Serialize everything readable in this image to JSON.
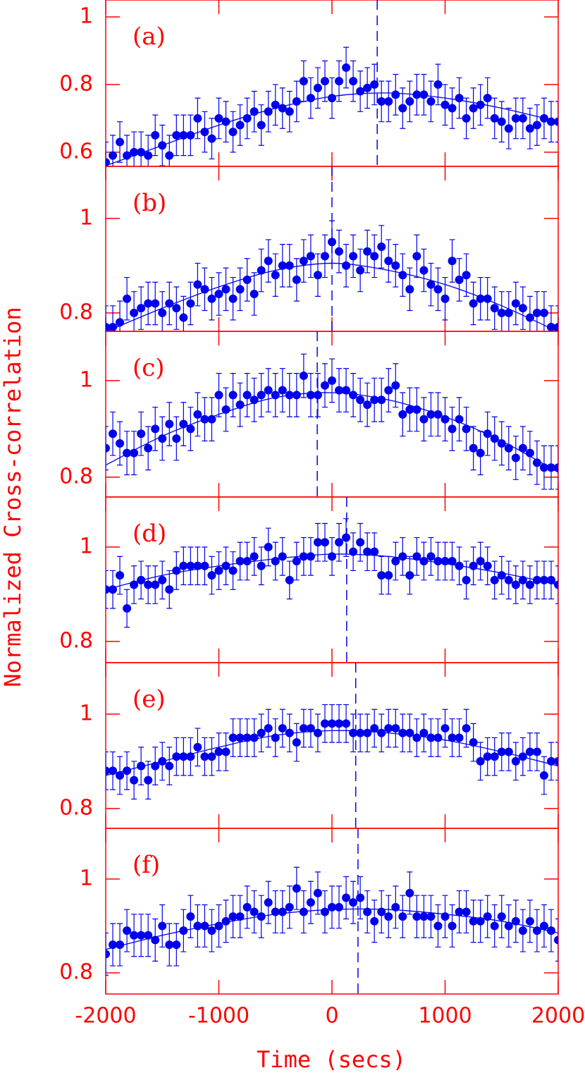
{
  "x_label": "Time (secs)",
  "y_label": "Normalized Cross-correlation",
  "axis_color": "#ff0000",
  "data_color": "#0000ee",
  "chart_data": [
    {
      "type": "scatter",
      "label": "(a)",
      "peak_x": 400,
      "error": 0.06,
      "x": [
        -2000,
        -1937.5,
        -1875,
        -1812.5,
        -1750,
        -1687.5,
        -1625,
        -1562.5,
        -1500,
        -1437.5,
        -1375,
        -1312.5,
        -1250,
        -1187.5,
        -1125,
        -1062.5,
        -1000,
        -937.5,
        -875,
        -812.5,
        -750,
        -687.5,
        -625,
        -562.5,
        -500,
        -437.5,
        -375,
        -312.5,
        -250,
        -187.5,
        -125,
        -62.5,
        0,
        62.5,
        125,
        187.5,
        250,
        312.5,
        375,
        437.5,
        500,
        562.5,
        625,
        687.5,
        750,
        812.5,
        875,
        937.5,
        1000,
        1062.5,
        1125,
        1187.5,
        1250,
        1312.5,
        1375,
        1437.5,
        1500,
        1562.5,
        1625,
        1687.5,
        1750,
        1812.5,
        1875,
        1937.5,
        2000
      ],
      "values": [
        0.57,
        0.59,
        0.63,
        0.59,
        0.6,
        0.6,
        0.59,
        0.65,
        0.62,
        0.59,
        0.65,
        0.65,
        0.65,
        0.7,
        0.66,
        0.64,
        0.7,
        0.69,
        0.66,
        0.68,
        0.7,
        0.72,
        0.68,
        0.72,
        0.74,
        0.73,
        0.72,
        0.75,
        0.81,
        0.76,
        0.79,
        0.81,
        0.76,
        0.81,
        0.85,
        0.81,
        0.78,
        0.79,
        0.8,
        0.75,
        0.75,
        0.77,
        0.73,
        0.75,
        0.77,
        0.77,
        0.75,
        0.8,
        0.74,
        0.73,
        0.76,
        0.7,
        0.73,
        0.74,
        0.76,
        0.7,
        0.69,
        0.67,
        0.7,
        0.7,
        0.67,
        0.68,
        0.7,
        0.69,
        0.69
      ],
      "fit": {
        "x": [
          -2000,
          -1500,
          -1000,
          -500,
          0,
          500,
          1000,
          1500,
          2000
        ],
        "values": [
          0.56,
          0.62,
          0.68,
          0.73,
          0.765,
          0.775,
          0.76,
          0.73,
          0.69
        ]
      },
      "xlim": [
        -2000,
        2000
      ],
      "xticks": [
        -2000,
        -1000,
        0,
        1000,
        2000
      ],
      "ylim": [
        0.558,
        1.05
      ],
      "yticks": [
        0.6,
        0.8,
        1
      ]
    },
    {
      "type": "scatter",
      "label": "(b)",
      "peak_x": 0,
      "error": 0.045,
      "x": [
        -2000,
        -1937.5,
        -1875,
        -1812.5,
        -1750,
        -1687.5,
        -1625,
        -1562.5,
        -1500,
        -1437.5,
        -1375,
        -1312.5,
        -1250,
        -1187.5,
        -1125,
        -1062.5,
        -1000,
        -937.5,
        -875,
        -812.5,
        -750,
        -687.5,
        -625,
        -562.5,
        -500,
        -437.5,
        -375,
        -312.5,
        -250,
        -187.5,
        -125,
        -62.5,
        0,
        62.5,
        125,
        187.5,
        250,
        312.5,
        375,
        437.5,
        500,
        562.5,
        625,
        687.5,
        750,
        812.5,
        875,
        937.5,
        1000,
        1062.5,
        1125,
        1187.5,
        1250,
        1312.5,
        1375,
        1437.5,
        1500,
        1562.5,
        1625,
        1687.5,
        1750,
        1812.5,
        1875,
        1937.5,
        2000
      ],
      "values": [
        0.77,
        0.77,
        0.78,
        0.83,
        0.8,
        0.81,
        0.82,
        0.82,
        0.8,
        0.82,
        0.81,
        0.79,
        0.82,
        0.86,
        0.85,
        0.83,
        0.84,
        0.85,
        0.83,
        0.85,
        0.87,
        0.84,
        0.89,
        0.91,
        0.88,
        0.9,
        0.9,
        0.87,
        0.91,
        0.92,
        0.88,
        0.92,
        0.95,
        0.93,
        0.9,
        0.92,
        0.89,
        0.93,
        0.92,
        0.94,
        0.91,
        0.9,
        0.88,
        0.85,
        0.92,
        0.89,
        0.86,
        0.85,
        0.83,
        0.91,
        0.87,
        0.88,
        0.82,
        0.83,
        0.83,
        0.81,
        0.8,
        0.8,
        0.82,
        0.81,
        0.79,
        0.8,
        0.8,
        0.77,
        0.77
      ],
      "fit": {
        "x": [
          -2000,
          -1500,
          -1000,
          -500,
          0,
          500,
          1000,
          1500,
          2000
        ],
        "values": [
          0.76,
          0.81,
          0.855,
          0.89,
          0.905,
          0.89,
          0.86,
          0.815,
          0.76
        ]
      },
      "xlim": [
        -2000,
        2000
      ],
      "xticks": [
        -2000,
        -1000,
        0,
        1000,
        2000
      ],
      "ylim": [
        0.761,
        1.11
      ],
      "yticks": [
        0.8,
        1
      ]
    },
    {
      "type": "scatter",
      "label": "(c)",
      "peak_x": -130,
      "error": 0.045,
      "x": [
        -2000,
        -1937.5,
        -1875,
        -1812.5,
        -1750,
        -1687.5,
        -1625,
        -1562.5,
        -1500,
        -1437.5,
        -1375,
        -1312.5,
        -1250,
        -1187.5,
        -1125,
        -1062.5,
        -1000,
        -937.5,
        -875,
        -812.5,
        -750,
        -687.5,
        -625,
        -562.5,
        -500,
        -437.5,
        -375,
        -312.5,
        -250,
        -187.5,
        -125,
        -62.5,
        0,
        62.5,
        125,
        187.5,
        250,
        312.5,
        375,
        437.5,
        500,
        562.5,
        625,
        687.5,
        750,
        812.5,
        875,
        937.5,
        1000,
        1062.5,
        1125,
        1187.5,
        1250,
        1312.5,
        1375,
        1437.5,
        1500,
        1562.5,
        1625,
        1687.5,
        1750,
        1812.5,
        1875,
        1937.5,
        2000
      ],
      "values": [
        0.86,
        0.89,
        0.87,
        0.85,
        0.85,
        0.89,
        0.86,
        0.9,
        0.88,
        0.91,
        0.88,
        0.91,
        0.9,
        0.93,
        0.92,
        0.92,
        0.97,
        0.94,
        0.97,
        0.95,
        0.97,
        0.96,
        0.97,
        0.98,
        0.97,
        0.98,
        0.97,
        0.97,
        1.01,
        0.97,
        0.97,
        0.99,
        1.0,
        0.98,
        0.98,
        0.97,
        0.96,
        0.95,
        0.96,
        0.96,
        0.98,
        0.99,
        0.93,
        0.94,
        0.94,
        0.92,
        0.93,
        0.93,
        0.92,
        0.9,
        0.92,
        0.9,
        0.86,
        0.85,
        0.89,
        0.88,
        0.87,
        0.86,
        0.84,
        0.86,
        0.85,
        0.83,
        0.82,
        0.82,
        0.82
      ],
      "fit": {
        "x": [
          -2000,
          -1500,
          -1000,
          -500,
          0,
          500,
          1000,
          1500,
          2000
        ],
        "values": [
          0.825,
          0.885,
          0.93,
          0.965,
          0.975,
          0.96,
          0.925,
          0.875,
          0.81
        ]
      },
      "xlim": [
        -2000,
        2000
      ],
      "xticks": [
        -2000,
        -1000,
        0,
        1000,
        2000
      ],
      "ylim": [
        0.759,
        1.102
      ],
      "yticks": [
        0.8,
        1
      ]
    },
    {
      "type": "scatter",
      "label": "(d)",
      "peak_x": 130,
      "error": 0.04,
      "x": [
        -2000,
        -1937.5,
        -1875,
        -1812.5,
        -1750,
        -1687.5,
        -1625,
        -1562.5,
        -1500,
        -1437.5,
        -1375,
        -1312.5,
        -1250,
        -1187.5,
        -1125,
        -1062.5,
        -1000,
        -937.5,
        -875,
        -812.5,
        -750,
        -687.5,
        -625,
        -562.5,
        -500,
        -437.5,
        -375,
        -312.5,
        -250,
        -187.5,
        -125,
        -62.5,
        0,
        62.5,
        125,
        187.5,
        250,
        312.5,
        375,
        437.5,
        500,
        562.5,
        625,
        687.5,
        750,
        812.5,
        875,
        937.5,
        1000,
        1062.5,
        1125,
        1187.5,
        1250,
        1312.5,
        1375,
        1437.5,
        1500,
        1562.5,
        1625,
        1687.5,
        1750,
        1812.5,
        1875,
        1937.5,
        2000
      ],
      "values": [
        0.91,
        0.91,
        0.94,
        0.87,
        0.92,
        0.93,
        0.92,
        0.92,
        0.93,
        0.91,
        0.95,
        0.96,
        0.96,
        0.96,
        0.96,
        0.94,
        0.95,
        0.96,
        0.95,
        0.97,
        0.97,
        0.98,
        0.96,
        1.0,
        0.97,
        0.98,
        0.93,
        0.97,
        0.98,
        0.98,
        1.01,
        1.01,
        0.98,
        1.01,
        1.02,
        0.99,
        1.01,
        0.99,
        0.99,
        0.94,
        0.94,
        0.97,
        0.98,
        0.94,
        0.98,
        0.97,
        0.98,
        0.97,
        0.97,
        0.97,
        0.96,
        0.93,
        0.96,
        0.97,
        0.96,
        0.93,
        0.94,
        0.93,
        0.92,
        0.93,
        0.92,
        0.93,
        0.93,
        0.93,
        0.92
      ],
      "fit": {
        "x": [
          -2000,
          -1500,
          -1000,
          -500,
          0,
          500,
          1000,
          1500,
          2000
        ],
        "values": [
          0.91,
          0.94,
          0.96,
          0.975,
          0.985,
          0.98,
          0.965,
          0.945,
          0.92
        ]
      },
      "xlim": [
        -2000,
        2000
      ],
      "xticks": [
        -2000,
        -1000,
        0,
        1000,
        2000
      ],
      "ylim": [
        0.755,
        1.106
      ],
      "yticks": [
        0.8,
        1
      ]
    },
    {
      "type": "scatter",
      "label": "(e)",
      "peak_x": 210,
      "error": 0.04,
      "x": [
        -2000,
        -1937.5,
        -1875,
        -1812.5,
        -1750,
        -1687.5,
        -1625,
        -1562.5,
        -1500,
        -1437.5,
        -1375,
        -1312.5,
        -1250,
        -1187.5,
        -1125,
        -1062.5,
        -1000,
        -937.5,
        -875,
        -812.5,
        -750,
        -687.5,
        -625,
        -562.5,
        -500,
        -437.5,
        -375,
        -312.5,
        -250,
        -187.5,
        -125,
        -62.5,
        0,
        62.5,
        125,
        187.5,
        250,
        312.5,
        375,
        437.5,
        500,
        562.5,
        625,
        687.5,
        750,
        812.5,
        875,
        937.5,
        1000,
        1062.5,
        1125,
        1187.5,
        1250,
        1312.5,
        1375,
        1437.5,
        1500,
        1562.5,
        1625,
        1687.5,
        1750,
        1812.5,
        1875,
        1937.5,
        2000
      ],
      "values": [
        0.88,
        0.88,
        0.87,
        0.88,
        0.86,
        0.89,
        0.86,
        0.89,
        0.9,
        0.89,
        0.91,
        0.91,
        0.91,
        0.93,
        0.91,
        0.91,
        0.92,
        0.92,
        0.95,
        0.95,
        0.95,
        0.95,
        0.96,
        0.97,
        0.95,
        0.97,
        0.96,
        0.94,
        0.97,
        0.97,
        0.96,
        0.98,
        0.98,
        0.98,
        0.98,
        0.96,
        0.96,
        0.96,
        0.97,
        0.96,
        0.97,
        0.97,
        0.96,
        0.96,
        0.95,
        0.96,
        0.95,
        0.95,
        0.97,
        0.95,
        0.95,
        0.97,
        0.94,
        0.9,
        0.91,
        0.91,
        0.92,
        0.92,
        0.9,
        0.91,
        0.92,
        0.92,
        0.87,
        0.9,
        0.9
      ],
      "fit": {
        "x": [
          -2000,
          -1500,
          -1000,
          -500,
          0,
          500,
          1000,
          1500,
          2000
        ],
        "values": [
          0.87,
          0.9,
          0.93,
          0.955,
          0.965,
          0.96,
          0.945,
          0.92,
          0.89
        ]
      },
      "xlim": [
        -2000,
        2000
      ],
      "xticks": [
        -2000,
        -1000,
        0,
        1000,
        2000
      ],
      "ylim": [
        0.758,
        1.109
      ],
      "yticks": [
        0.8,
        1
      ]
    },
    {
      "type": "scatter",
      "label": "(f)",
      "peak_x": 230,
      "error": 0.045,
      "x": [
        -2000,
        -1937.5,
        -1875,
        -1812.5,
        -1750,
        -1687.5,
        -1625,
        -1562.5,
        -1500,
        -1437.5,
        -1375,
        -1312.5,
        -1250,
        -1187.5,
        -1125,
        -1062.5,
        -1000,
        -937.5,
        -875,
        -812.5,
        -750,
        -687.5,
        -625,
        -562.5,
        -500,
        -437.5,
        -375,
        -312.5,
        -250,
        -187.5,
        -125,
        -62.5,
        0,
        62.5,
        125,
        187.5,
        250,
        312.5,
        375,
        437.5,
        500,
        562.5,
        625,
        687.5,
        750,
        812.5,
        875,
        937.5,
        1000,
        1062.5,
        1125,
        1187.5,
        1250,
        1312.5,
        1375,
        1437.5,
        1500,
        1562.5,
        1625,
        1687.5,
        1750,
        1812.5,
        1875,
        1937.5,
        2000
      ],
      "values": [
        0.84,
        0.86,
        0.86,
        0.89,
        0.88,
        0.88,
        0.88,
        0.87,
        0.9,
        0.86,
        0.86,
        0.89,
        0.92,
        0.9,
        0.9,
        0.89,
        0.9,
        0.91,
        0.92,
        0.92,
        0.94,
        0.93,
        0.92,
        0.95,
        0.93,
        0.93,
        0.94,
        0.98,
        0.93,
        0.95,
        0.97,
        0.93,
        0.94,
        0.94,
        0.96,
        0.95,
        0.96,
        0.93,
        0.91,
        0.93,
        0.92,
        0.94,
        0.92,
        0.97,
        0.92,
        0.92,
        0.92,
        0.9,
        0.92,
        0.9,
        0.93,
        0.93,
        0.91,
        0.91,
        0.92,
        0.9,
        0.92,
        0.9,
        0.91,
        0.89,
        0.91,
        0.89,
        0.9,
        0.89,
        0.87
      ],
      "fit": {
        "x": [
          -2000,
          -1500,
          -1000,
          -500,
          0,
          500,
          1000,
          1500,
          2000
        ],
        "values": [
          0.85,
          0.88,
          0.905,
          0.925,
          0.935,
          0.935,
          0.925,
          0.91,
          0.885
        ]
      },
      "xlim": [
        -2000,
        2000
      ],
      "xticks": [
        -2000,
        -1000,
        0,
        1000,
        2000
      ],
      "ylim": [
        0.755,
        1.108
      ],
      "yticks": [
        0.8,
        1
      ]
    }
  ]
}
